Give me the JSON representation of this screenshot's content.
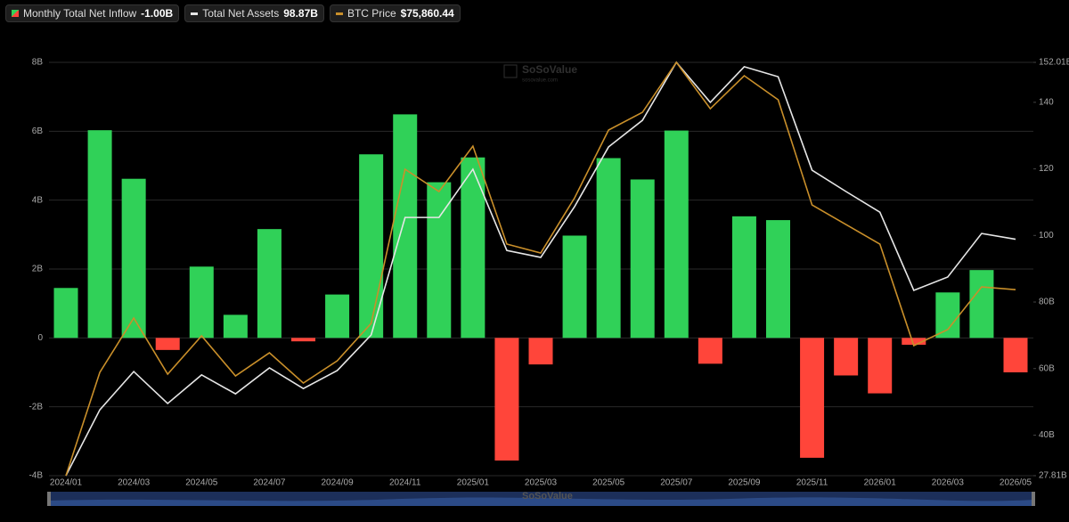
{
  "chart_data": {
    "type": "bar-line",
    "categories": [
      "2024/01",
      null,
      "2024/03",
      null,
      "2024/05",
      null,
      "2024/07",
      null,
      "2024/09",
      null,
      "2024/11",
      null,
      "2025/01",
      null,
      "2025/03",
      null,
      "2025/05",
      null,
      "2025/07",
      null,
      "2025/09",
      null,
      "2025/11",
      null,
      "2026/01",
      null,
      "2026/03",
      null,
      "2026/05"
    ],
    "series": [
      {
        "name": "Monthly Total Net Inflow",
        "type": "bar",
        "color": "#30d158",
        "negative_color": "#ff453a",
        "values": [
          1.45,
          6.03,
          4.62,
          -0.35,
          2.07,
          0.67,
          3.16,
          -0.1,
          1.26,
          5.33,
          6.49,
          4.52,
          5.24,
          -3.56,
          -0.77,
          2.97,
          5.22,
          4.6,
          6.02,
          -0.75,
          3.53,
          3.42,
          -3.48,
          -1.09,
          -1.61,
          -0.2,
          1.32,
          1.97,
          -1.0
        ]
      },
      {
        "name": "Total Net Assets",
        "type": "line",
        "axis": "y2",
        "color": "#e6e6e6",
        "values": [
          27.81,
          47.6,
          59.1,
          49.5,
          58.1,
          52.4,
          60.2,
          54.0,
          59.4,
          70.1,
          105.4,
          105.4,
          119.9,
          95.5,
          93.4,
          108.7,
          126.6,
          134.6,
          152.01,
          140.0,
          150.7,
          147.7,
          119.6,
          113.2,
          107.0,
          83.5,
          87.5,
          100.6,
          98.87
        ]
      },
      {
        "name": "BTC Price",
        "type": "line",
        "axis": "own",
        "color": "#c98f2a",
        "values": [
          42600,
          61080,
          70800,
          60760,
          67610,
          60440,
          64580,
          59170,
          63150,
          69840,
          97400,
          93420,
          101540,
          84020,
          82420,
          92300,
          104410,
          107590,
          116520,
          108230,
          114130,
          109830,
          91020,
          87520,
          84020,
          65860,
          68730,
          76370,
          75860.44
        ]
      }
    ],
    "legend_values": [
      "-1.00B",
      "98.87B",
      "$75,860.44"
    ],
    "ylim": [
      -4,
      8
    ],
    "yticks": [
      {
        "value": -4,
        "label": "-4B"
      },
      {
        "value": -2,
        "label": "-2B"
      },
      0,
      {
        "value": 2,
        "label": "2B"
      },
      {
        "value": 4,
        "label": "4B"
      },
      {
        "value": 6,
        "label": "6B"
      },
      {
        "value": 8,
        "label": "8B"
      }
    ],
    "y2lim": [
      27.81,
      152.01
    ],
    "y2ticks": [
      {
        "value": 27.81,
        "label": "27.81B"
      },
      {
        "value": 40,
        "label": "40B"
      },
      {
        "value": 60,
        "label": "60B"
      },
      {
        "value": 80,
        "label": "80B"
      },
      100,
      120,
      140,
      {
        "value": 152.01,
        "label": "152.01B"
      }
    ],
    "grid": true,
    "watermark": "SoSoValue",
    "watermark_url": "sosovalue.com"
  }
}
